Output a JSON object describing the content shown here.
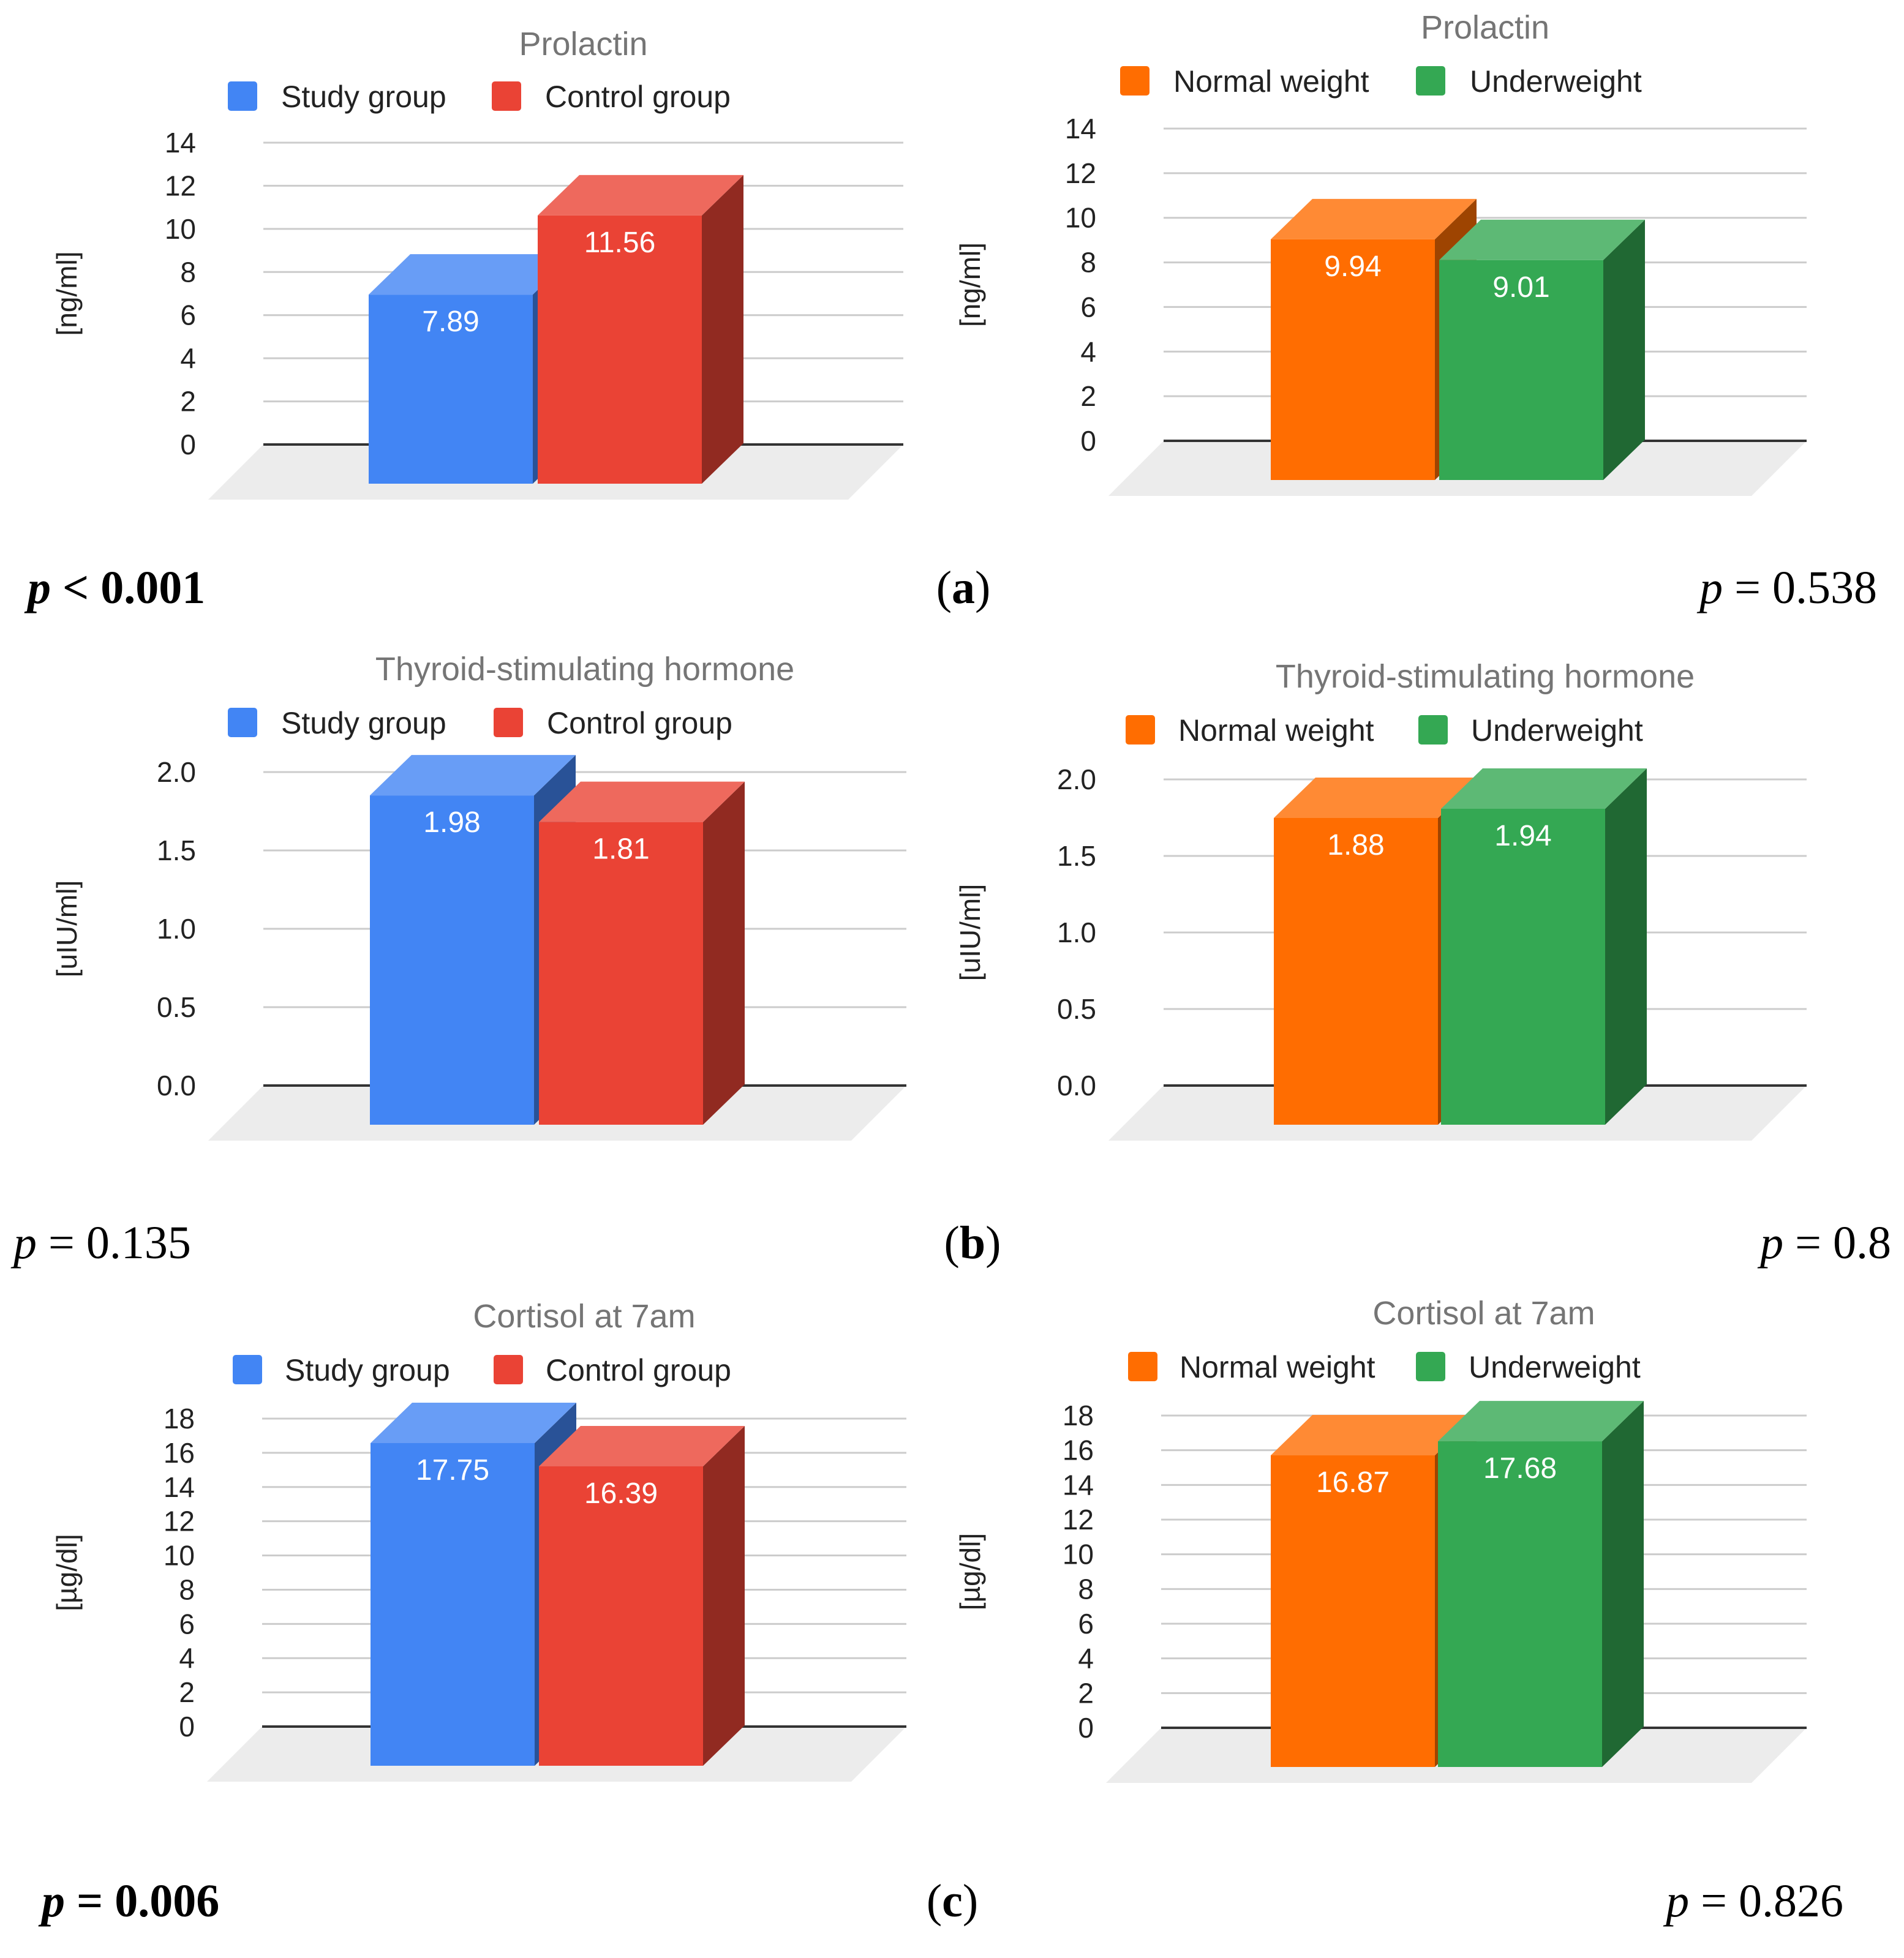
{
  "chart_data": [
    {
      "type": "bar",
      "title": "Prolactin",
      "categories": [
        "Study group",
        "Control group"
      ],
      "values": [
        7.89,
        11.56
      ],
      "value_labels": [
        "7.89",
        "11.56"
      ],
      "colors": [
        "#4285F4",
        "#EA4335"
      ],
      "ylabel": "[ng/ml]",
      "ylim": [
        0,
        14
      ],
      "yticks": [
        "0",
        "2",
        "4",
        "6",
        "8",
        "10",
        "12",
        "14"
      ],
      "legend": "top"
    },
    {
      "type": "bar",
      "title": "Prolactin",
      "categories": [
        "Normal weight",
        "Underweight"
      ],
      "values": [
        9.94,
        9.01
      ],
      "value_labels": [
        "9.94",
        "9.01"
      ],
      "colors": [
        "#FF6D01",
        "#34A853"
      ],
      "ylabel": "[ng/ml]",
      "ylim": [
        0,
        14
      ],
      "yticks": [
        "0",
        "2",
        "4",
        "6",
        "8",
        "10",
        "12",
        "14"
      ],
      "legend": "top"
    },
    {
      "type": "bar",
      "title": "Thyroid-stimulating hormone",
      "categories": [
        "Study group",
        "Control group"
      ],
      "values": [
        1.98,
        1.81
      ],
      "value_labels": [
        "1.98",
        "1.81"
      ],
      "colors": [
        "#4285F4",
        "#EA4335"
      ],
      "ylabel": "[uIU/ml]",
      "ylim": [
        0,
        2.0
      ],
      "yticks": [
        "0.0",
        "0.5",
        "1.0",
        "1.5",
        "2.0"
      ],
      "legend": "top"
    },
    {
      "type": "bar",
      "title": "Thyroid-stimulating hormone",
      "categories": [
        "Normal weight",
        "Underweight"
      ],
      "values": [
        1.88,
        1.94
      ],
      "value_labels": [
        "1.88",
        "1.94"
      ],
      "colors": [
        "#FF6D01",
        "#34A853"
      ],
      "ylabel": "[uIU/ml]",
      "ylim": [
        0,
        2.0
      ],
      "yticks": [
        "0.0",
        "0.5",
        "1.0",
        "1.5",
        "2.0"
      ],
      "legend": "top"
    },
    {
      "type": "bar",
      "title": "Cortisol at 7am",
      "categories": [
        "Study group",
        "Control group"
      ],
      "values": [
        17.75,
        16.39
      ],
      "value_labels": [
        "17.75",
        "16.39"
      ],
      "colors": [
        "#4285F4",
        "#EA4335"
      ],
      "ylabel": "[µg/dl]",
      "ylim": [
        0,
        18
      ],
      "yticks": [
        "0",
        "2",
        "4",
        "6",
        "8",
        "10",
        "12",
        "14",
        "16",
        "18"
      ],
      "legend": "top"
    },
    {
      "type": "bar",
      "title": "Cortisol at 7am",
      "categories": [
        "Normal weight",
        "Underweight"
      ],
      "values": [
        16.87,
        17.68
      ],
      "value_labels": [
        "16.87",
        "17.68"
      ],
      "colors": [
        "#FF6D01",
        "#34A853"
      ],
      "ylabel": "[µg/dl]",
      "ylim": [
        0,
        18
      ],
      "yticks": [
        "0",
        "2",
        "4",
        "6",
        "8",
        "10",
        "12",
        "14",
        "16",
        "18"
      ],
      "legend": "top"
    }
  ],
  "annotations": [
    {
      "p_left": "p",
      "p_left_value": " < 0.001",
      "p_left_bold": true,
      "panel": "(",
      "panel_letter": "a",
      "panel_close": ")",
      "p_right": "p",
      "p_right_value": " = 0.538",
      "p_right_bold": false
    },
    {
      "p_left": "p",
      "p_left_value": " = 0.135",
      "p_left_bold": false,
      "panel": "(",
      "panel_letter": "b",
      "panel_close": ")",
      "p_right": "p",
      "p_right_value": " = 0.8",
      "p_right_bold": false
    },
    {
      "p_left": "p",
      "p_left_value": " = 0.006",
      "p_left_bold": true,
      "panel": "(",
      "panel_letter": "c",
      "panel_close": ")",
      "p_right": "p",
      "p_right_value": " = 0.826",
      "p_right_bold": false
    }
  ]
}
